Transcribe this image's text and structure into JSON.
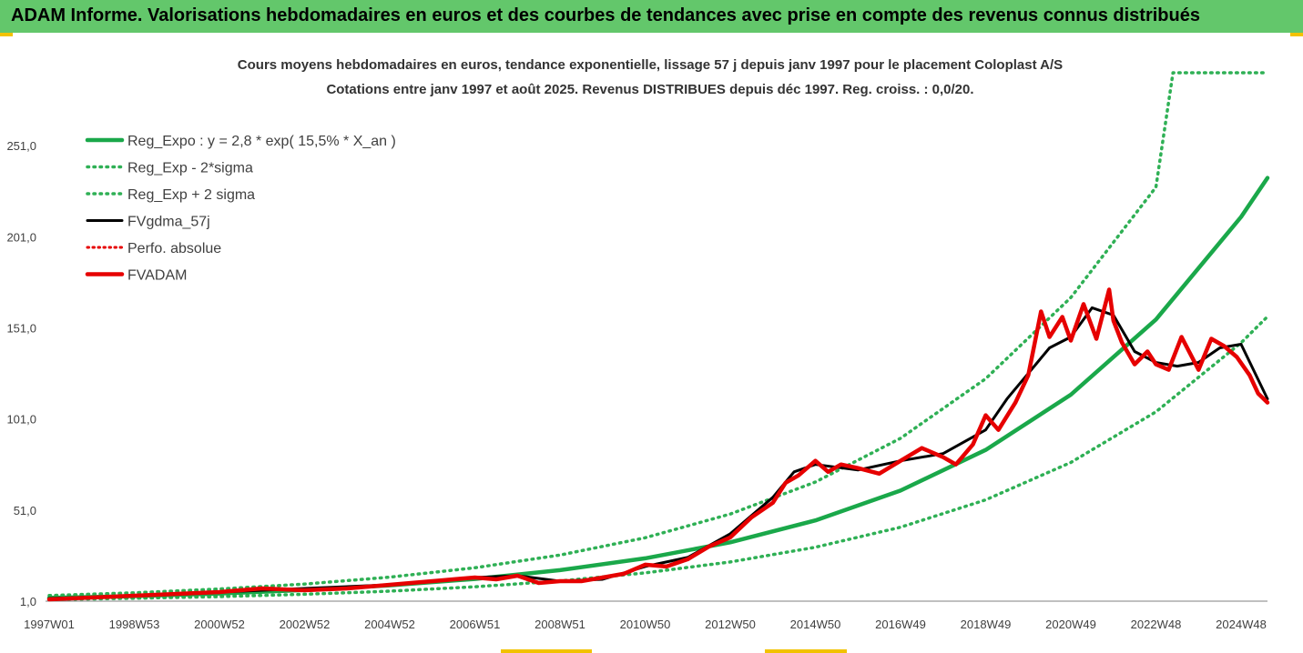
{
  "header": {
    "banner_text": "ADAM Informe. Valorisations hebdomadaires en euros et des courbes de tendances avec prise en compte des revenus connus distribués"
  },
  "colors": {
    "banner": "#63c76b",
    "trend": "#1aa84a",
    "band": "#2fb055",
    "fvgdma": "#000000",
    "fvadam": "#e60000",
    "perfo": "#e60000"
  },
  "chart_data": {
    "type": "line",
    "title": "Cours moyens hebdomadaires en euros, tendance exponentielle, lissage 57 j depuis janv 1997 pour le placement Coloplast A/S",
    "subtitle": "Cotations entre janv 1997 et août 2025. Revenus DISTRIBUES depuis déc 1997. Reg. croiss. : 0,0/20.",
    "xlabel": "",
    "ylabel": "",
    "x_range": [
      1997.0,
      2025.62
    ],
    "ylim": [
      1.0,
      291.0
    ],
    "y_ticks": [
      "1,0",
      "51,0",
      "101,0",
      "151,0",
      "201,0",
      "251,0"
    ],
    "x_ticks": [
      {
        "label": "1997W01",
        "year": 1997.0
      },
      {
        "label": "1998W53",
        "year": 1999.0
      },
      {
        "label": "2000W52",
        "year": 2001.0
      },
      {
        "label": "2002W52",
        "year": 2003.0
      },
      {
        "label": "2004W52",
        "year": 2005.0
      },
      {
        "label": "2006W51",
        "year": 2007.0
      },
      {
        "label": "2008W51",
        "year": 2009.0
      },
      {
        "label": "2010W50",
        "year": 2011.0
      },
      {
        "label": "2012W50",
        "year": 2013.0
      },
      {
        "label": "2014W50",
        "year": 2015.0
      },
      {
        "label": "2016W49",
        "year": 2017.0
      },
      {
        "label": "2018W49",
        "year": 2019.0
      },
      {
        "label": "2020W49",
        "year": 2021.0
      },
      {
        "label": "2022W48",
        "year": 2023.0
      },
      {
        "label": "2024W48",
        "year": 2025.0
      }
    ],
    "grid": false,
    "legend_position": "top-left",
    "series": [
      {
        "name": "Reg_Expo : y = 2,8 * exp( 15,5% *  X_an )",
        "style": "solid-thick",
        "color": "#1aa84a",
        "x": [
          1997.0,
          1999.0,
          2001.0,
          2003.0,
          2005.0,
          2007.0,
          2009.0,
          2011.0,
          2013.0,
          2015.0,
          2017.0,
          2019.0,
          2021.0,
          2023.0,
          2025.0,
          2025.62
        ],
        "y": [
          2.8,
          3.8,
          5.2,
          7.1,
          9.7,
          13.2,
          18.0,
          24.5,
          33.3,
          45.3,
          61.7,
          84.0,
          114.3,
          155.6,
          211.9,
          233.3
        ]
      },
      {
        "name": "Reg_Exp - 2*sigma",
        "style": "dotted",
        "color": "#2fb055",
        "x": [
          1997.0,
          1999.0,
          2001.0,
          2003.0,
          2005.0,
          2007.0,
          2009.0,
          2011.0,
          2013.0,
          2015.0,
          2017.0,
          2019.0,
          2021.0,
          2023.0,
          2025.0,
          2025.62
        ],
        "y": [
          1.9,
          2.6,
          3.5,
          4.8,
          6.5,
          8.9,
          12.1,
          16.5,
          22.5,
          30.6,
          41.6,
          56.6,
          77.1,
          104.9,
          142.8,
          157.2
        ]
      },
      {
        "name": "Reg_Exp + 2 sigma",
        "style": "dotted",
        "color": "#2fb055",
        "x": [
          1997.0,
          1999.0,
          2001.0,
          2003.0,
          2005.0,
          2007.0,
          2009.0,
          2011.0,
          2013.0,
          2015.0,
          2017.0,
          2019.0,
          2021.0,
          2023.0,
          2023.4,
          2024.0,
          2025.62
        ],
        "y": [
          4.1,
          5.6,
          7.7,
          10.4,
          14.2,
          19.3,
          26.3,
          35.8,
          48.8,
          66.4,
          90.4,
          123.1,
          167.6,
          228.2,
          291.0,
          291.0,
          291.0
        ]
      },
      {
        "name": "FVgdma_57j",
        "style": "solid",
        "color": "#000000",
        "x": [
          1997.0,
          1999.0,
          2001.0,
          2003.0,
          2005.0,
          2007.0,
          2008.0,
          2009.0,
          2010.0,
          2011.0,
          2012.0,
          2013.0,
          2014.0,
          2014.5,
          2015.0,
          2016.0,
          2017.0,
          2018.0,
          2019.0,
          2019.5,
          2020.0,
          2020.5,
          2021.0,
          2021.5,
          2022.0,
          2022.5,
          2023.0,
          2023.5,
          2024.0,
          2024.5,
          2025.0,
          2025.62
        ],
        "y": [
          2.5,
          4.0,
          6.0,
          8.0,
          10.0,
          14.0,
          15.0,
          12.0,
          13.0,
          20.0,
          25.0,
          38.0,
          58.0,
          72.0,
          76.0,
          73.0,
          78.0,
          82.0,
          95.0,
          112.0,
          126.0,
          140.0,
          146.0,
          162.0,
          158.0,
          138.0,
          132.0,
          130.0,
          132.0,
          140.0,
          142.0,
          112.0
        ]
      },
      {
        "name": "Perfo. absolue",
        "style": "dotted-red",
        "color": "#e60000",
        "x": [],
        "y": []
      },
      {
        "name": "FVADAM",
        "style": "solid-thick",
        "color": "#e60000",
        "x": [
          1997.0,
          1998.0,
          1999.0,
          2000.0,
          2001.0,
          2002.0,
          2003.0,
          2004.0,
          2005.0,
          2006.0,
          2007.0,
          2007.5,
          2008.0,
          2008.5,
          2009.0,
          2009.5,
          2010.0,
          2010.5,
          2011.0,
          2011.5,
          2012.0,
          2012.5,
          2013.0,
          2013.5,
          2014.0,
          2014.3,
          2014.6,
          2015.0,
          2015.3,
          2015.6,
          2016.0,
          2016.5,
          2017.0,
          2017.5,
          2018.0,
          2018.3,
          2018.7,
          2019.0,
          2019.3,
          2019.7,
          2020.0,
          2020.3,
          2020.5,
          2020.8,
          2021.0,
          2021.3,
          2021.6,
          2021.9,
          2022.0,
          2022.2,
          2022.5,
          2022.8,
          2023.0,
          2023.3,
          2023.6,
          2024.0,
          2024.3,
          2024.6,
          2024.9,
          2025.2,
          2025.4,
          2025.62
        ],
        "y": [
          2.0,
          3.0,
          4.0,
          5.0,
          6.0,
          8.0,
          7.0,
          8.0,
          10.0,
          12.0,
          14.0,
          13.0,
          15.0,
          11.0,
          12.0,
          12.0,
          14.0,
          16.0,
          21.0,
          20.0,
          24.0,
          31.0,
          36.0,
          47.0,
          55.0,
          66.0,
          70.0,
          78.0,
          72.0,
          76.0,
          74.0,
          71.0,
          78.0,
          85.0,
          80.0,
          76.0,
          87.0,
          103.0,
          95.0,
          110.0,
          125.0,
          160.0,
          146.0,
          157.0,
          144.0,
          164.0,
          145.0,
          172.0,
          155.0,
          143.0,
          131.0,
          138.0,
          131.0,
          128.0,
          146.0,
          128.0,
          145.0,
          141.0,
          135.0,
          125.0,
          115.0,
          110.0
        ]
      }
    ]
  }
}
